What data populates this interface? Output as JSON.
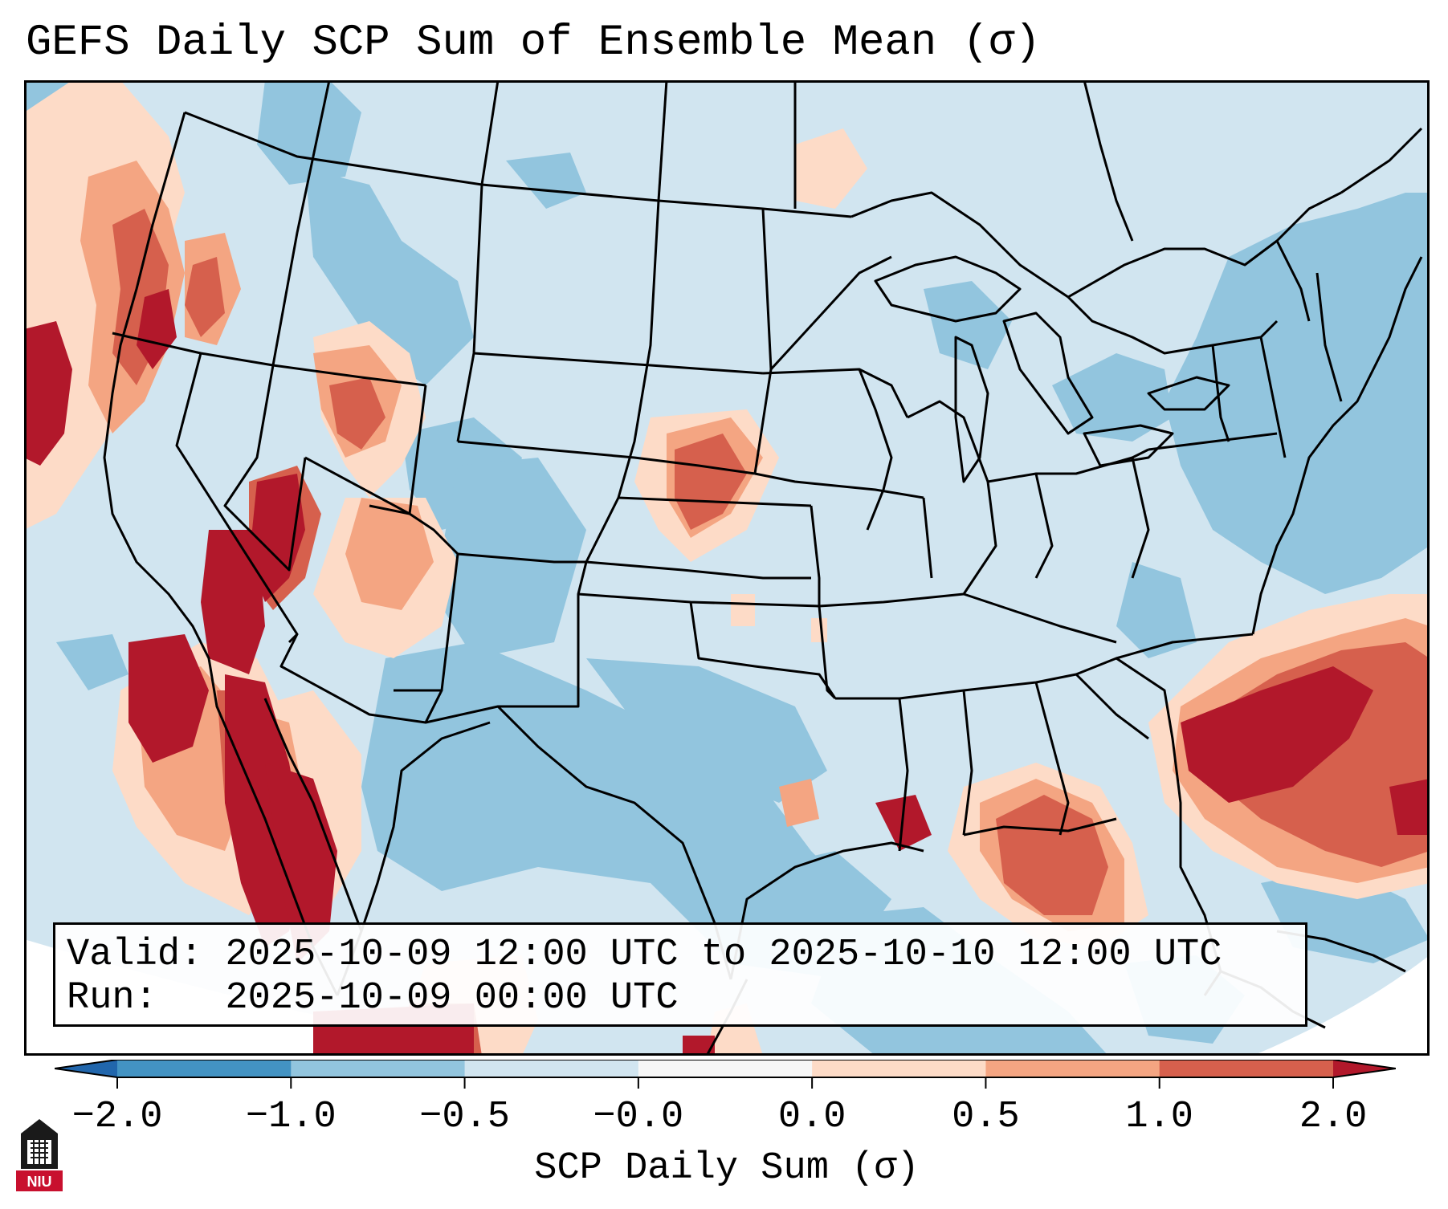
{
  "title": "GEFS Daily SCP Sum of Ensemble Mean (σ)",
  "info": {
    "valid_label": "Valid:",
    "valid_value": "2025-10-09 12:00 UTC to 2025-10-10 12:00 UTC",
    "run_label": "Run:",
    "run_value": "2025-10-09 00:00 UTC"
  },
  "colorbar": {
    "label": "SCP Daily Sum (σ)",
    "ticks": [
      "−2.0",
      "−1.0",
      "−0.5",
      "−0.0",
      "0.0",
      "0.5",
      "1.0",
      "2.0"
    ],
    "bins": [
      {
        "from": "-inf",
        "to": -2.0,
        "color": "#2166ac"
      },
      {
        "from": -2.0,
        "to": -1.0,
        "color": "#4393c3"
      },
      {
        "from": -1.0,
        "to": -0.5,
        "color": "#92c5de"
      },
      {
        "from": -0.5,
        "to": -0.0,
        "color": "#d1e5f0"
      },
      {
        "from": -0.0,
        "to": 0.0,
        "color": "#f7f7f7"
      },
      {
        "from": 0.0,
        "to": 0.5,
        "color": "#fddbc7"
      },
      {
        "from": 0.5,
        "to": 1.0,
        "color": "#f4a582"
      },
      {
        "from": 1.0,
        "to": 2.0,
        "color": "#d6604d"
      },
      {
        "from": 2.0,
        "to": "inf",
        "color": "#b2182b"
      }
    ]
  },
  "logo": {
    "text": "NIU",
    "color": "#c8102e"
  },
  "colors": {
    "ocean_outside": "#ffffff",
    "base": "#d1e5f0",
    "neg_mid": "#92c5de",
    "pos_light": "#fddbc7",
    "pos_mid": "#f4a582",
    "pos_strong": "#d6604d",
    "pos_max": "#b2182b",
    "borders": "#000000"
  }
}
